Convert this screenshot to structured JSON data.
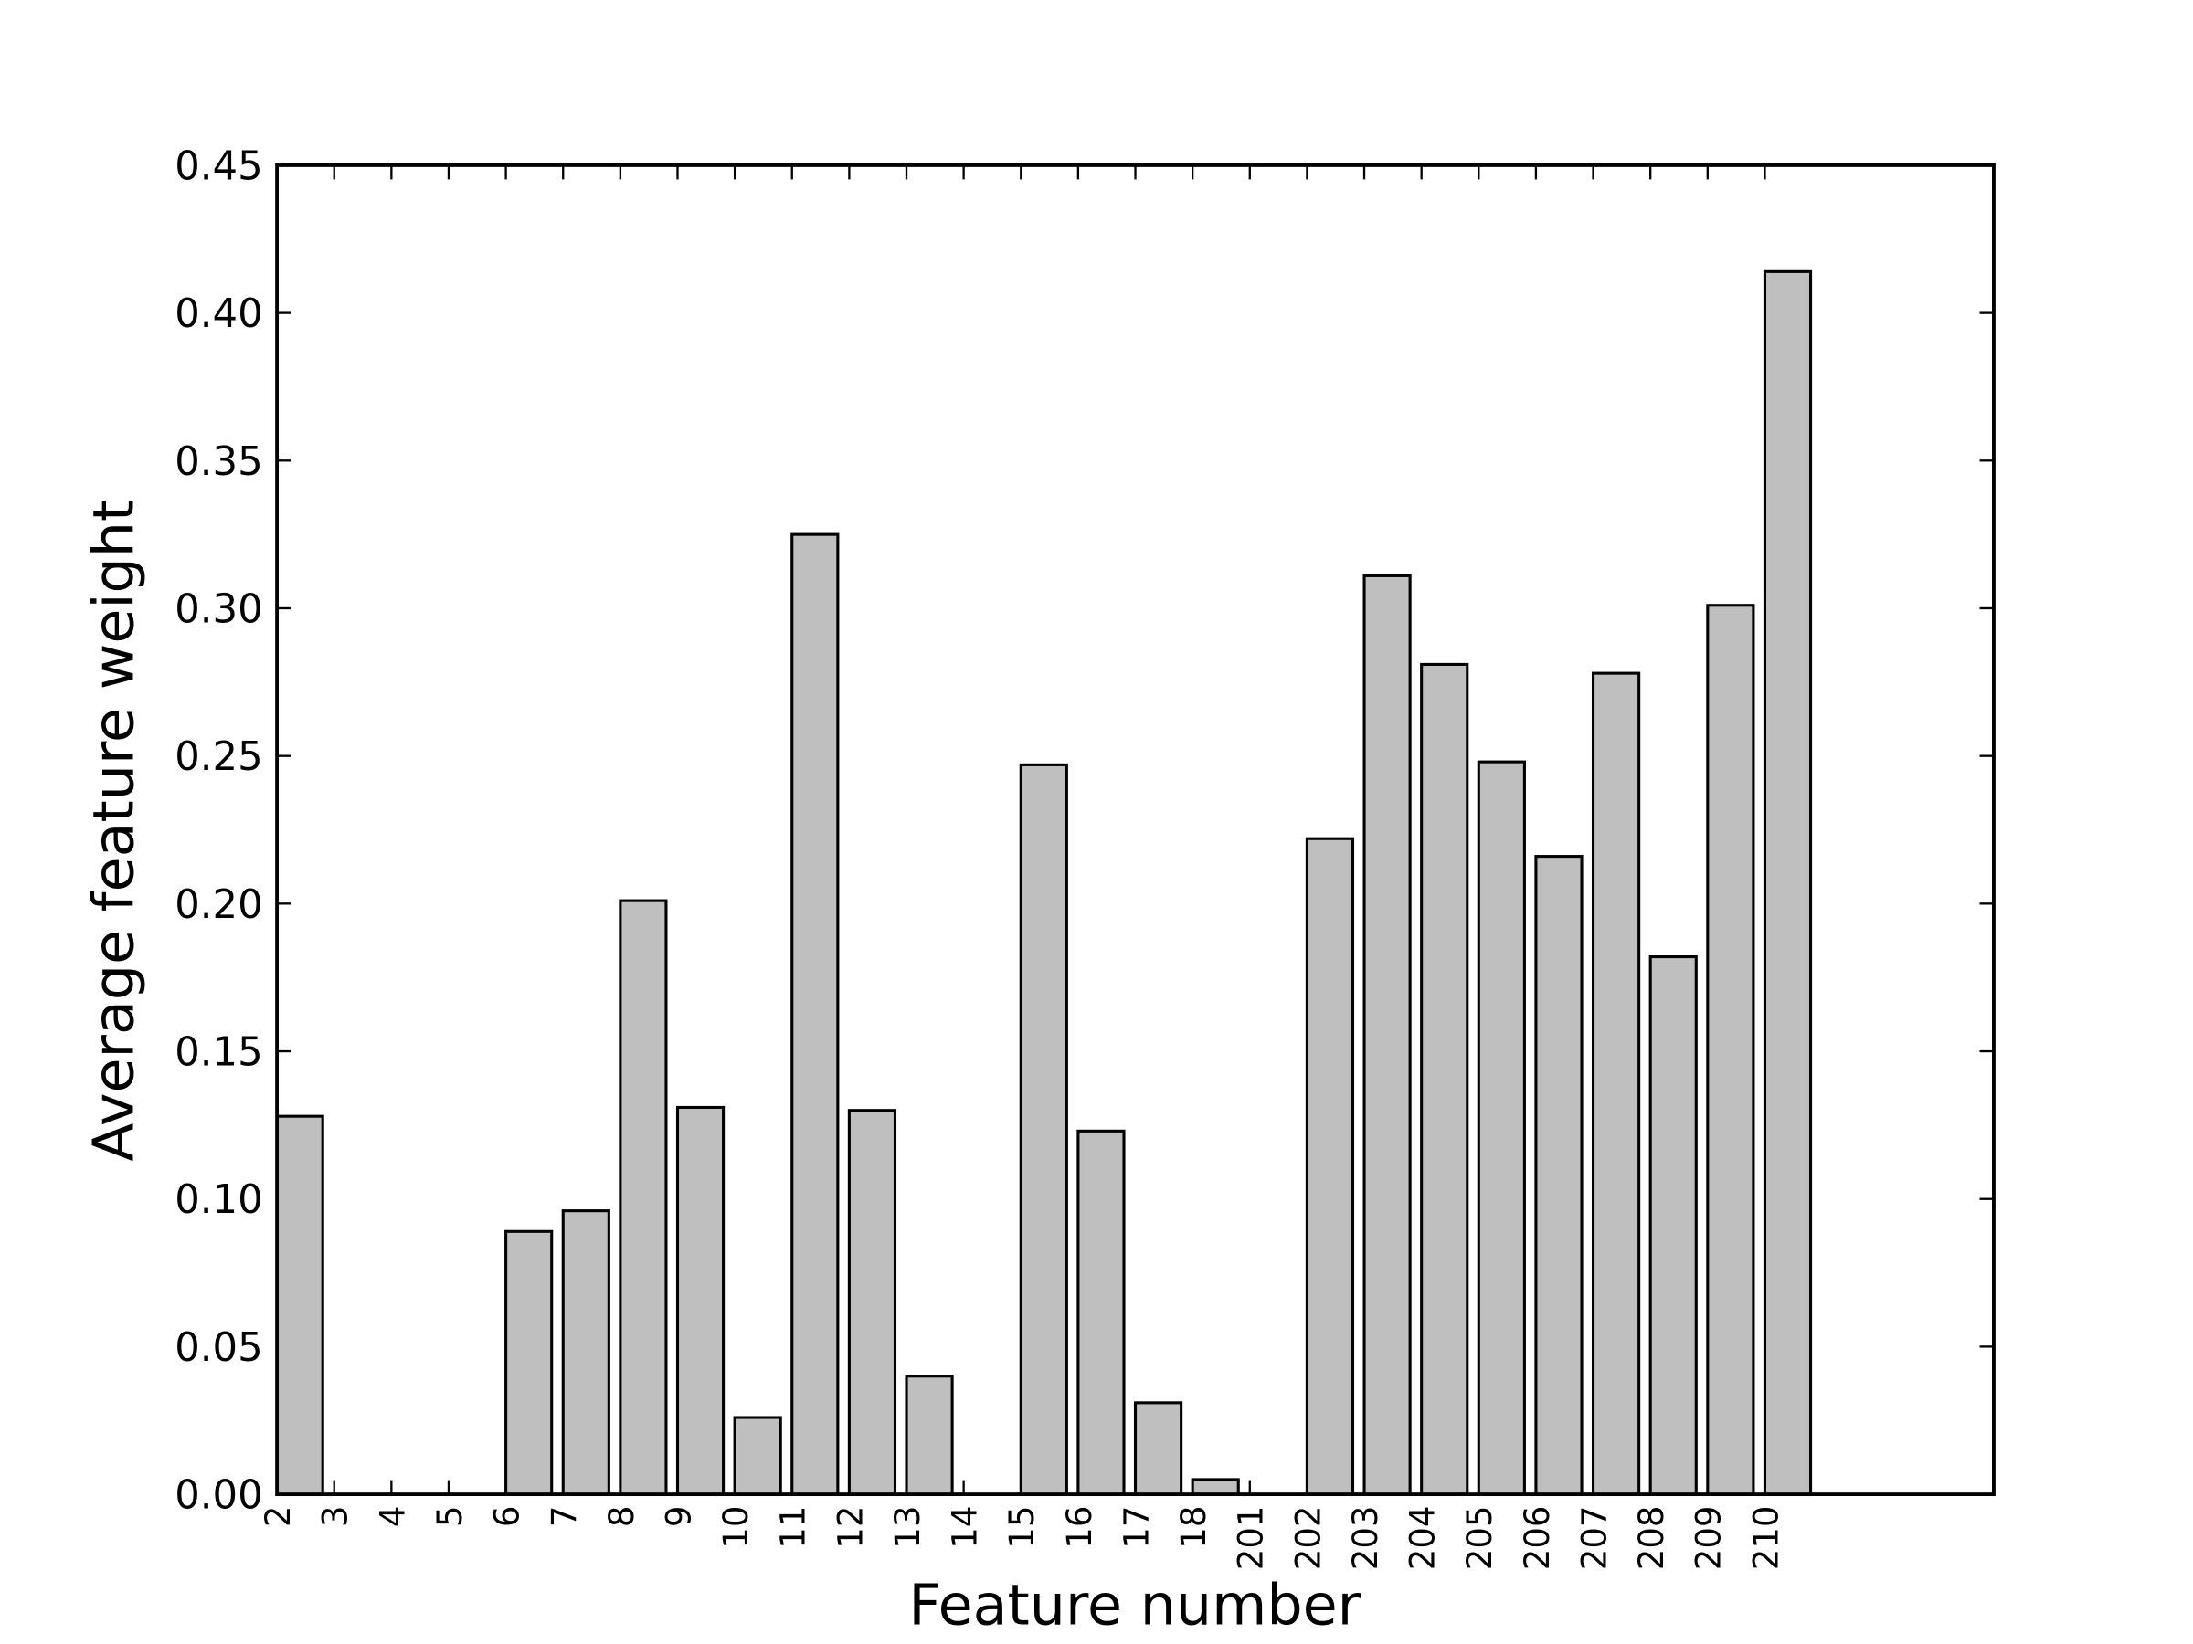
{
  "chart_data": {
    "type": "bar",
    "x_label": "Feature number",
    "y_label": "Average feature weight",
    "categories": [
      "2",
      "3",
      "4",
      "5",
      "6",
      "7",
      "8",
      "9",
      "10",
      "11",
      "12",
      "13",
      "14",
      "15",
      "16",
      "17",
      "18",
      "201",
      "202",
      "203",
      "204",
      "205",
      "206",
      "207",
      "208",
      "209",
      "210"
    ],
    "values": [
      0.128,
      0,
      0,
      0,
      0.089,
      0.096,
      0.201,
      0.131,
      0.026,
      0.325,
      0.13,
      0.04,
      0,
      0.247,
      0.123,
      0.031,
      0.005,
      0,
      0.222,
      0.311,
      0.281,
      0.248,
      0.216,
      0.278,
      0.182,
      0.301,
      0.414
    ],
    "color": "#bfbfbf",
    "ylim": [
      0,
      0.45
    ],
    "yticks": [
      {
        "value": 0,
        "label": "0.00"
      },
      {
        "value": 0.05,
        "label": "0.05"
      },
      {
        "value": 0.1,
        "label": "0.10"
      },
      {
        "value": 0.15,
        "label": "0.15"
      },
      {
        "value": 0.2,
        "label": "0.20"
      },
      {
        "value": 0.25,
        "label": "0.25"
      },
      {
        "value": 0.3,
        "label": "0.30"
      },
      {
        "value": 0.35,
        "label": "0.35"
      },
      {
        "value": 0.4,
        "label": "0.40"
      },
      {
        "value": 0.45,
        "label": "0.45"
      }
    ],
    "grid": false
  }
}
